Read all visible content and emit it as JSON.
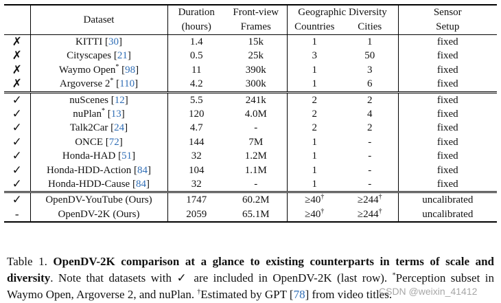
{
  "table": {
    "header": {
      "dataset": "Dataset",
      "duration_l1": "Duration",
      "duration_l2": "(hours)",
      "frames_l1": "Front-view",
      "frames_l2": "Frames",
      "geo_group": "Geographic Diversity",
      "countries": "Countries",
      "cities": "Cities",
      "sensor_l1": "Sensor",
      "sensor_l2": "Setup"
    },
    "groups": [
      {
        "rows": [
          {
            "mark": "✗",
            "name": "KITTI ",
            "cite": "30",
            "star": "",
            "duration": "1.4",
            "frames": "15k",
            "countries": "1",
            "cities": "1",
            "sensor": "fixed"
          },
          {
            "mark": "✗",
            "name": "Cityscapes ",
            "cite": "21",
            "star": "",
            "duration": "0.5",
            "frames": "25k",
            "countries": "3",
            "cities": "50",
            "sensor": "fixed"
          },
          {
            "mark": "✗",
            "name": "Waymo Open",
            "cite": "98",
            "star": "*",
            "duration": "11",
            "frames": "390k",
            "countries": "1",
            "cities": "3",
            "sensor": "fixed"
          },
          {
            "mark": "✗",
            "name": "Argoverse 2",
            "cite": "110",
            "star": "*",
            "duration": "4.2",
            "frames": "300k",
            "countries": "1",
            "cities": "6",
            "sensor": "fixed"
          }
        ]
      },
      {
        "rows": [
          {
            "mark": "✓",
            "name": "nuScenes ",
            "cite": "12",
            "star": "",
            "duration": "5.5",
            "frames": "241k",
            "countries": "2",
            "cities": "2",
            "sensor": "fixed"
          },
          {
            "mark": "✓",
            "name": "nuPlan",
            "cite": "13",
            "star": "*",
            "duration": "120",
            "frames": "4.0M",
            "countries": "2",
            "cities": "4",
            "sensor": "fixed"
          },
          {
            "mark": "✓",
            "name": "Talk2Car ",
            "cite": "24",
            "star": "",
            "duration": "4.7",
            "frames": "-",
            "countries": "2",
            "cities": "2",
            "sensor": "fixed"
          },
          {
            "mark": "✓",
            "name": "ONCE ",
            "cite": "72",
            "star": "",
            "duration": "144",
            "frames": "7M",
            "countries": "1",
            "cities": "-",
            "sensor": "fixed"
          },
          {
            "mark": "✓",
            "name": "Honda-HAD ",
            "cite": "51",
            "star": "",
            "duration": "32",
            "frames": "1.2M",
            "countries": "1",
            "cities": "-",
            "sensor": "fixed"
          },
          {
            "mark": "✓",
            "name": "Honda-HDD-Action ",
            "cite": "84",
            "star": "",
            "duration": "104",
            "frames": "1.1M",
            "countries": "1",
            "cities": "-",
            "sensor": "fixed"
          },
          {
            "mark": "✓",
            "name": "Honda-HDD-Cause ",
            "cite": "84",
            "star": "",
            "duration": "32",
            "frames": "-",
            "countries": "1",
            "cities": "-",
            "sensor": "fixed"
          }
        ]
      }
    ],
    "ours": [
      {
        "mark": "✓",
        "name": "OpenDV-YouTube (Ours)",
        "duration": "1747",
        "frames": "60.2M",
        "countries": "≥40",
        "countries_sup": "†",
        "cities": "≥244",
        "cities_sup": "†",
        "sensor": "uncalibrated"
      },
      {
        "mark": "-",
        "name": "OpenDV-2K (Ours)",
        "duration": "2059",
        "frames": "65.1M",
        "countries": "≥40",
        "countries_sup": "†",
        "cities": "≥244",
        "cities_sup": "†",
        "sensor": "uncalibrated"
      }
    ]
  },
  "caption": {
    "label": "Table 1.",
    "bold_title": "OpenDV-2K comparison at a glance to existing counterparts in terms of scale and diversity",
    "t1": ". Note that datasets with ",
    "check": "✓",
    "t2": " are included in OpenDV-2K (last row). ",
    "star": "*",
    "t3": "Perception subset in Waymo Open, Argoverse 2, and nuPlan. ",
    "dagger": "†",
    "t4": "Estimated by GPT [",
    "cite": "78",
    "t5": "] from video titles."
  },
  "watermark": "CSDN @weixin_41412"
}
